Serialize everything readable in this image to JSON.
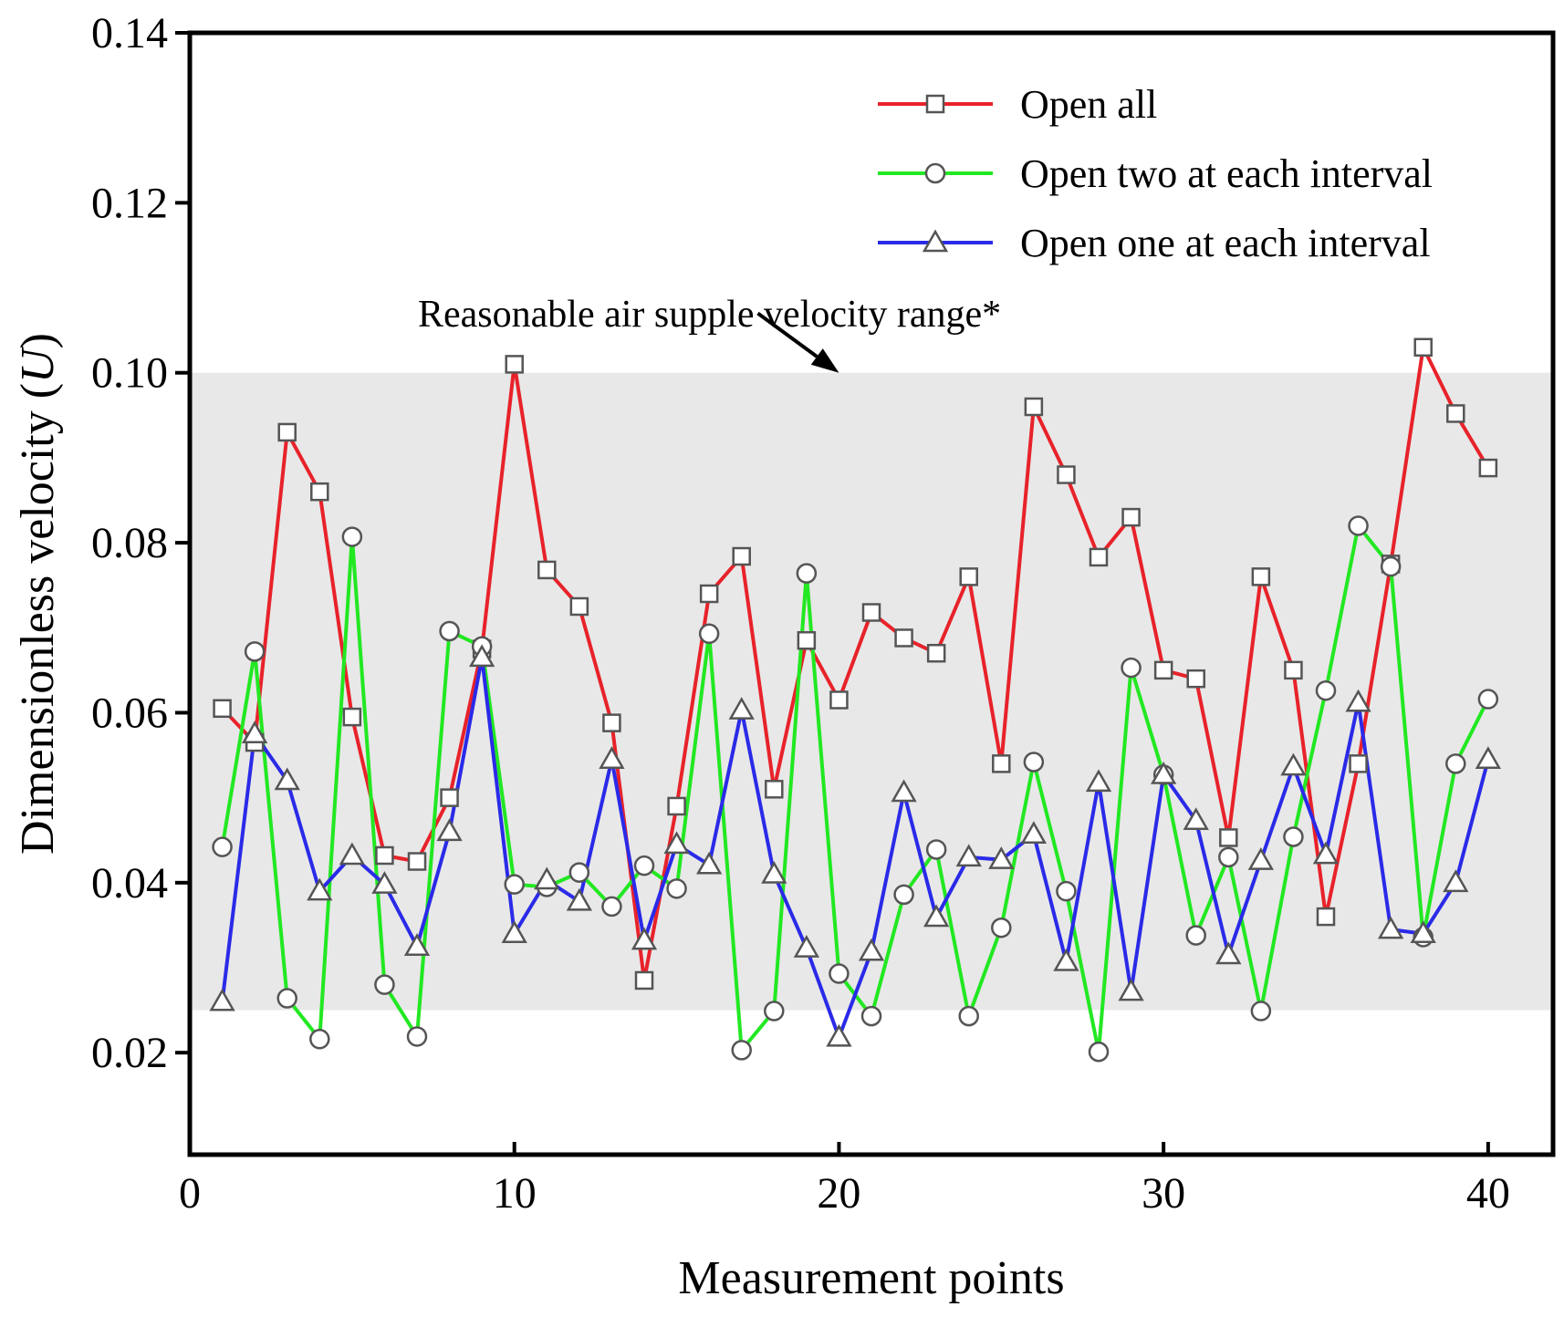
{
  "chart_data": {
    "type": "line",
    "xlabel": "Measurement points",
    "ylabel_prefix": "Dimensionless velocity (",
    "ylabel_var": "U",
    "ylabel_suffix": ")",
    "xlim": [
      0,
      42
    ],
    "ylim": [
      0.008,
      0.14
    ],
    "xticks": [
      0,
      10,
      20,
      30,
      40
    ],
    "xtick_labels": [
      "0",
      "10",
      "20",
      "30",
      "40"
    ],
    "yticks": [
      0.02,
      0.04,
      0.06,
      0.08,
      0.1,
      0.12,
      0.14
    ],
    "ytick_labels": [
      "0.02",
      "0.04",
      "0.06",
      "0.08",
      "0.10",
      "0.12",
      "0.14"
    ],
    "shaded_band": {
      "y_range": [
        0.025,
        0.1
      ],
      "color": "#e8e8e8"
    },
    "annotation": {
      "text": "Reasonable air supple velocity range*",
      "arrow_from": [
        17.5,
        0.107
      ],
      "arrow_to": [
        20,
        0.1
      ]
    },
    "legend_position": "top-right",
    "x": [
      1,
      2,
      3,
      4,
      5,
      6,
      7,
      8,
      9,
      10,
      11,
      12,
      13,
      14,
      15,
      16,
      17,
      18,
      19,
      20,
      21,
      22,
      23,
      24,
      25,
      26,
      27,
      28,
      29,
      30,
      31,
      32,
      33,
      34,
      35,
      36,
      37,
      38,
      39,
      40
    ],
    "series": [
      {
        "name": "Open all",
        "color": "#e8222a",
        "marker": "square",
        "values": [
          0.0605,
          0.0565,
          0.093,
          0.086,
          0.0595,
          0.0432,
          0.0425,
          0.05,
          0.0675,
          0.101,
          0.0768,
          0.0725,
          0.0588,
          0.0285,
          0.049,
          0.074,
          0.0784,
          0.051,
          0.0685,
          0.0615,
          0.0718,
          0.0688,
          0.067,
          0.076,
          0.054,
          0.096,
          0.088,
          0.0783,
          0.083,
          0.065,
          0.064,
          0.0453,
          0.076,
          0.065,
          0.036,
          0.054,
          0.0775,
          0.103,
          0.0952,
          0.0888
        ]
      },
      {
        "name": "Open two at each interval",
        "color": "#22e822",
        "marker": "circle",
        "values": [
          0.0442,
          0.0672,
          0.0264,
          0.0216,
          0.0807,
          0.028,
          0.0219,
          0.0696,
          0.0678,
          0.0398,
          0.0395,
          0.0412,
          0.0372,
          0.042,
          0.0393,
          0.0693,
          0.0203,
          0.0249,
          0.0764,
          0.0293,
          0.0243,
          0.0386,
          0.0439,
          0.0243,
          0.0347,
          0.0542,
          0.039,
          0.0201,
          0.0653,
          0.0527,
          0.0338,
          0.043,
          0.0249,
          0.0454,
          0.0626,
          0.082,
          0.0772,
          0.0336,
          0.054,
          0.0616
        ]
      },
      {
        "name": "Open one at each interval",
        "color": "#2a2ae8",
        "marker": "triangle",
        "values": [
          0.026,
          0.0575,
          0.052,
          0.039,
          0.0432,
          0.0398,
          0.0325,
          0.046,
          0.0665,
          0.034,
          0.0403,
          0.0378,
          0.0545,
          0.0332,
          0.0445,
          0.0421,
          0.0603,
          0.041,
          0.0323,
          0.0218,
          0.0319,
          0.0506,
          0.0359,
          0.043,
          0.0427,
          0.0457,
          0.0307,
          0.0518,
          0.0272,
          0.0527,
          0.0473,
          0.0315,
          0.0426,
          0.0537,
          0.0433,
          0.0612,
          0.0345,
          0.034,
          0.04,
          0.0545
        ]
      }
    ]
  }
}
